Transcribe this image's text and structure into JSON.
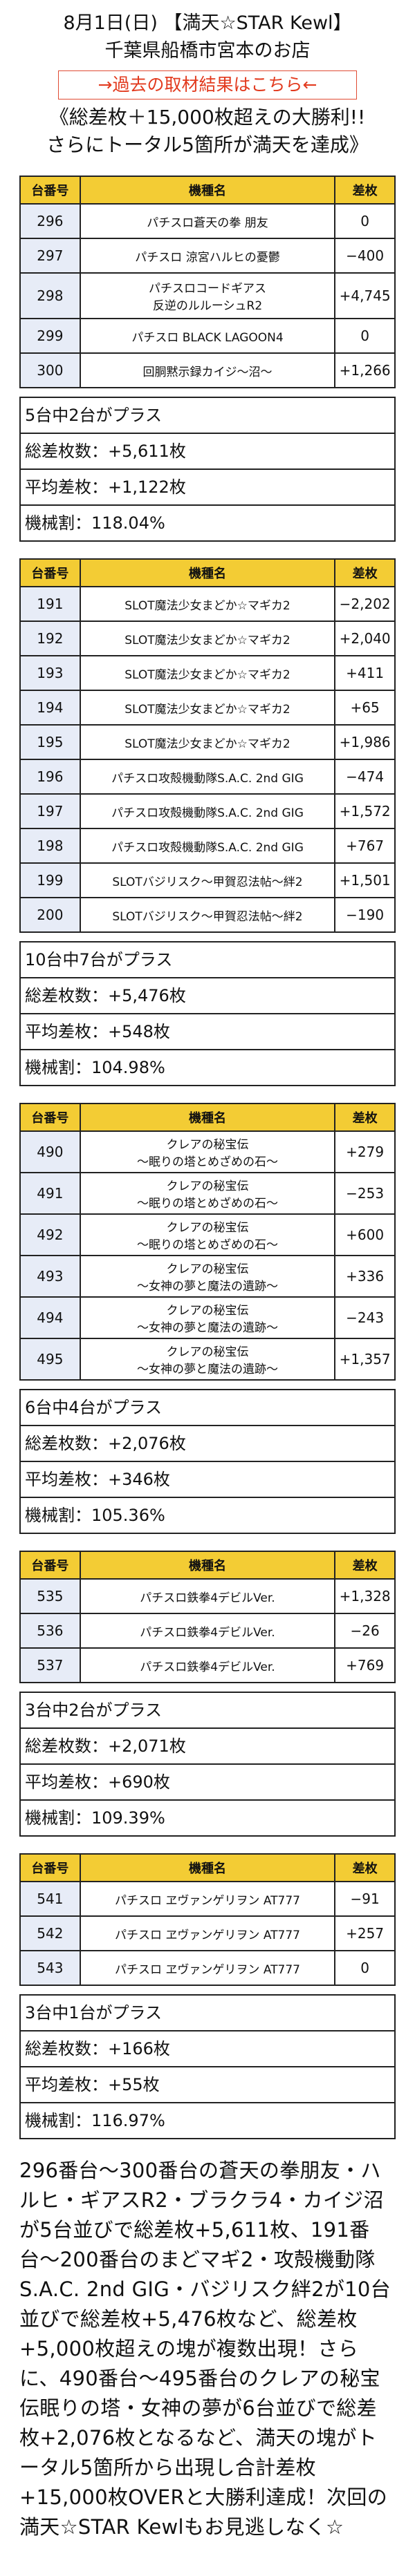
{
  "header": {
    "line1": "8月1日(日) 【満天☆STAR Kewl】",
    "line2": "千葉県船橋市宮本のお店",
    "link": "→過去の取材結果はこちら←",
    "lead1": "《総差枚＋15,000枚超えの大勝利!!",
    "lead2": "さらにトータル5箇所が満天を達成》"
  },
  "col_headers": {
    "num": "台番号",
    "model": "機種名",
    "diff": "差枚"
  },
  "groups": [
    {
      "rows": [
        {
          "num": "296",
          "model": "パチスロ蒼天の拳 朋友",
          "diff": "0",
          "h": 50
        },
        {
          "num": "297",
          "model": "パチスロ 涼宮ハルヒの憂鬱",
          "diff": "−400",
          "h": 50
        },
        {
          "num": "298",
          "model": "パチスロコードギアス\n反逆のルルーシュR2",
          "diff": "+4,745",
          "h": 66
        },
        {
          "num": "299",
          "model": "パチスロ BLACK LAGOON4",
          "diff": "0",
          "h": 50
        },
        {
          "num": "300",
          "model": "回胴黙示録カイジ〜沼〜",
          "diff": "+1,266",
          "h": 50
        }
      ],
      "plus": "5台中2台がプラス",
      "total": "総差枚数：+5,611枚",
      "avg": "平均差枚：+1,122枚",
      "rate": "機械割：118.04%"
    },
    {
      "rows": [
        {
          "num": "191",
          "model": "SLOT魔法少女まどか☆マギカ2",
          "diff": "−2,202",
          "h": 50
        },
        {
          "num": "192",
          "model": "SLOT魔法少女まどか☆マギカ2",
          "diff": "+2,040",
          "h": 50
        },
        {
          "num": "193",
          "model": "SLOT魔法少女まどか☆マギカ2",
          "diff": "+411",
          "h": 50
        },
        {
          "num": "194",
          "model": "SLOT魔法少女まどか☆マギカ2",
          "diff": "+65",
          "h": 50
        },
        {
          "num": "195",
          "model": "SLOT魔法少女まどか☆マギカ2",
          "diff": "+1,986",
          "h": 50
        },
        {
          "num": "196",
          "model": "パチスロ攻殻機動隊S.A.C. 2nd GIG",
          "diff": "−474",
          "h": 50
        },
        {
          "num": "197",
          "model": "パチスロ攻殻機動隊S.A.C. 2nd GIG",
          "diff": "+1,572",
          "h": 50
        },
        {
          "num": "198",
          "model": "パチスロ攻殻機動隊S.A.C. 2nd GIG",
          "diff": "+767",
          "h": 50
        },
        {
          "num": "199",
          "model": "SLOTバジリスク〜甲賀忍法帖〜絆2",
          "diff": "+1,501",
          "h": 50
        },
        {
          "num": "200",
          "model": "SLOTバジリスク〜甲賀忍法帖〜絆2",
          "diff": "−190",
          "h": 50
        }
      ],
      "plus": "10台中7台がプラス",
      "total": "総差枚数：+5,476枚",
      "avg": "平均差枚：+548枚",
      "rate": "機械割：104.98%"
    },
    {
      "rows": [
        {
          "num": "490",
          "model": "クレアの秘宝伝\n〜眠りの塔とめざめの石〜",
          "diff": "+279",
          "h": 60
        },
        {
          "num": "491",
          "model": "クレアの秘宝伝\n〜眠りの塔とめざめの石〜",
          "diff": "−253",
          "h": 60
        },
        {
          "num": "492",
          "model": "クレアの秘宝伝\n〜眠りの塔とめざめの石〜",
          "diff": "+600",
          "h": 60
        },
        {
          "num": "493",
          "model": "クレアの秘宝伝\n〜女神の夢と魔法の遺跡〜",
          "diff": "+336",
          "h": 60
        },
        {
          "num": "494",
          "model": "クレアの秘宝伝\n〜女神の夢と魔法の遺跡〜",
          "diff": "−243",
          "h": 60
        },
        {
          "num": "495",
          "model": "クレアの秘宝伝\n〜女神の夢と魔法の遺跡〜",
          "diff": "+1,357",
          "h": 60
        }
      ],
      "plus": "6台中4台がプラス",
      "total": "総差枚数：+2,076枚",
      "avg": "平均差枚：+346枚",
      "rate": "機械割：105.36%"
    },
    {
      "rows": [
        {
          "num": "535",
          "model": "パチスロ鉄拳4デビルVer.",
          "diff": "+1,328",
          "h": 50
        },
        {
          "num": "536",
          "model": "パチスロ鉄拳4デビルVer.",
          "diff": "−26",
          "h": 50
        },
        {
          "num": "537",
          "model": "パチスロ鉄拳4デビルVer.",
          "diff": "+769",
          "h": 50
        }
      ],
      "plus": "3台中2台がプラス",
      "total": "総差枚数：+2,071枚",
      "avg": "平均差枚：+690枚",
      "rate": "機械割：109.39%"
    },
    {
      "rows": [
        {
          "num": "541",
          "model": "パチスロ ヱヴァンゲリヲン AT777",
          "diff": "−91",
          "h": 50
        },
        {
          "num": "542",
          "model": "パチスロ ヱヴァンゲリヲン AT777",
          "diff": "+257",
          "h": 50
        },
        {
          "num": "543",
          "model": "パチスロ ヱヴァンゲリヲン AT777",
          "diff": "0",
          "h": 50
        }
      ],
      "plus": "3台中1台がプラス",
      "total": "総差枚数：+166枚",
      "avg": "平均差枚：+55枚",
      "rate": "機械割：116.97%"
    }
  ],
  "closing": "296番台〜300番台の蒼天の拳朋友・ハルヒ・ギアスR2・ブラクラ4・カイジ沼が5台並びで総差枚+5,611枚、191番台〜200番台のまどマギ2・攻殻機動隊S.A.C. 2nd GIG・バジリスク絆2が10台並びで総差枚+5,476枚など、総差枚+5,000枚超えの塊が複数出現！さらに、490番台〜495番台のクレアの秘宝伝眠りの塔・女神の夢が6台並びで総差枚+2,076枚となるなど、満天の塊がトータル5箇所から出現し合計差枚+15,000枚OVERと大勝利達成！次回の満天☆STAR Kewlもお見逃しなく☆"
}
